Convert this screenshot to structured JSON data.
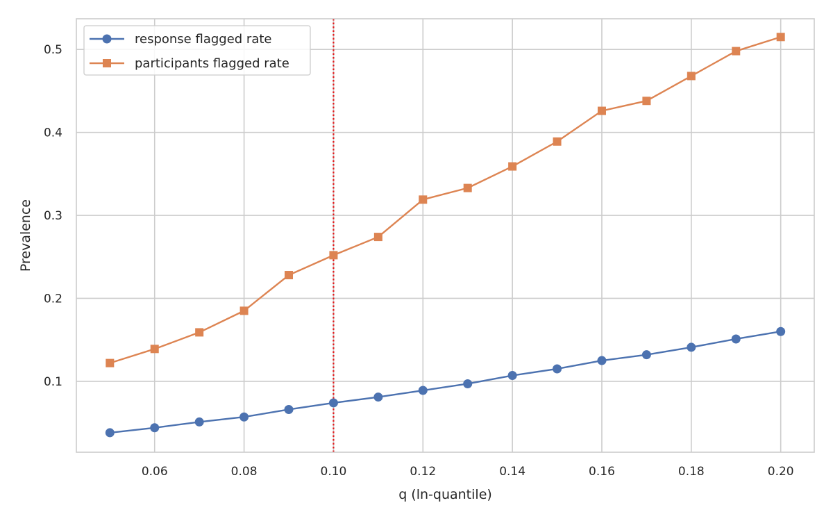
{
  "chart_data": {
    "type": "line",
    "xlabel": "q (ln-quantile)",
    "ylabel": "Prevalence",
    "xlim": [
      0.0425,
      0.2075
    ],
    "ylim": [
      0.0145,
      0.537
    ],
    "xticks": [
      0.06,
      0.08,
      0.1,
      0.12,
      0.14,
      0.16,
      0.18,
      0.2
    ],
    "xtick_labels": [
      "0.06",
      "0.08",
      "0.10",
      "0.12",
      "0.14",
      "0.16",
      "0.18",
      "0.20"
    ],
    "yticks": [
      0.1,
      0.2,
      0.3,
      0.4,
      0.5
    ],
    "ytick_labels": [
      "0.1",
      "0.2",
      "0.3",
      "0.4",
      "0.5"
    ],
    "grid": true,
    "legend_position": "top-left",
    "x": [
      0.05,
      0.06,
      0.07,
      0.08,
      0.09,
      0.1,
      0.11,
      0.12,
      0.13,
      0.14,
      0.15,
      0.16,
      0.17,
      0.18,
      0.19,
      0.2
    ],
    "series": [
      {
        "name": "response flagged rate",
        "marker": "circle",
        "color": "#4c72b0",
        "values": [
          0.038,
          0.044,
          0.051,
          0.057,
          0.066,
          0.074,
          0.081,
          0.089,
          0.097,
          0.107,
          0.115,
          0.125,
          0.132,
          0.141,
          0.151,
          0.16
        ]
      },
      {
        "name": "participants flagged rate",
        "marker": "square",
        "color": "#dd8452",
        "values": [
          0.122,
          0.139,
          0.159,
          0.185,
          0.228,
          0.252,
          0.274,
          0.319,
          0.333,
          0.359,
          0.389,
          0.426,
          0.438,
          0.468,
          0.498,
          0.515
        ]
      }
    ],
    "reference_line": {
      "x": 0.1,
      "style": "dotted",
      "color": "#e41a1c"
    }
  }
}
